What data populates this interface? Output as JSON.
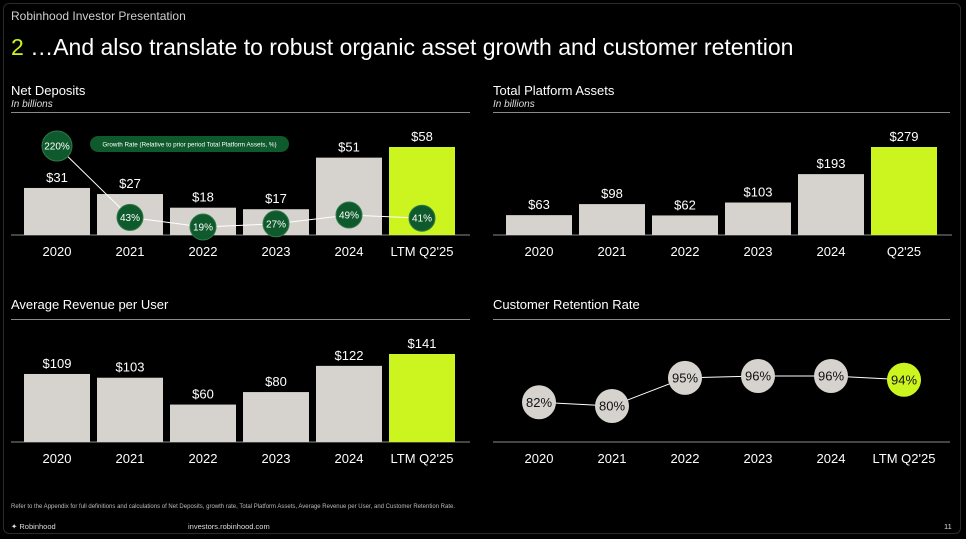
{
  "header": {
    "top_label": "Robinhood Investor Presentation",
    "title_number": "2",
    "title_text": "…And also translate to robust organic asset growth and customer retention"
  },
  "colors": {
    "bar": "#d6d3cf",
    "highlight": "#ccf520",
    "bubble": "#0f5a2c",
    "background": "#000000"
  },
  "panels": {
    "net_deposits": {
      "title": "Net Deposits",
      "subtitle": "In billions",
      "legend": "Growth Rate (Relative to prior period Total Platform Assets, %)"
    },
    "platform_assets": {
      "title": "Total Platform Assets",
      "subtitle": "In billions"
    },
    "arpu": {
      "title": "Average Revenue per User"
    },
    "retention": {
      "title": "Customer Retention Rate"
    }
  },
  "chart_data": [
    {
      "id": "net_deposits",
      "type": "bar",
      "title": "Net Deposits",
      "subtitle": "In billions",
      "categories": [
        "2020",
        "2021",
        "2022",
        "2023",
        "2024",
        "LTM Q2'25"
      ],
      "values": [
        31,
        27,
        18,
        17,
        51,
        58
      ],
      "labels": [
        "$31",
        "$27",
        "$18",
        "$17",
        "$51",
        "$58"
      ],
      "ylim": [
        0,
        58
      ],
      "highlight_index": 5,
      "overlay": {
        "type": "line",
        "name": "Growth Rate (Relative to prior period Total Platform Assets, %)",
        "values": [
          220,
          43,
          19,
          27,
          49,
          41
        ],
        "labels": [
          "220%",
          "43%",
          "19%",
          "27%",
          "49%",
          "41%"
        ]
      }
    },
    {
      "id": "platform_assets",
      "type": "bar",
      "title": "Total Platform Assets",
      "subtitle": "In billions",
      "categories": [
        "2020",
        "2021",
        "2022",
        "2023",
        "2024",
        "Q2'25"
      ],
      "values": [
        63,
        98,
        62,
        103,
        193,
        279
      ],
      "labels": [
        "$63",
        "$98",
        "$62",
        "$103",
        "$193",
        "$279"
      ],
      "ylim": [
        0,
        279
      ],
      "highlight_index": 5
    },
    {
      "id": "arpu",
      "type": "bar",
      "title": "Average Revenue per User",
      "categories": [
        "2020",
        "2021",
        "2022",
        "2023",
        "2024",
        "LTM Q2'25"
      ],
      "values": [
        109,
        103,
        60,
        80,
        122,
        141
      ],
      "labels": [
        "$109",
        "$103",
        "$60",
        "$80",
        "$122",
        "$141"
      ],
      "ylim": [
        0,
        141
      ],
      "highlight_index": 5
    },
    {
      "id": "retention",
      "type": "line",
      "title": "Customer Retention Rate",
      "categories": [
        "2020",
        "2021",
        "2022",
        "2023",
        "2024",
        "LTM Q2'25"
      ],
      "values": [
        82,
        80,
        95,
        96,
        96,
        94
      ],
      "labels": [
        "82%",
        "80%",
        "95%",
        "96%",
        "96%",
        "94%"
      ],
      "ylim": [
        75,
        100
      ],
      "highlight_index": 5
    }
  ],
  "footer": {
    "footnote": "Refer to the Appendix for full definitions and calculations of Net Deposits, growth rate, Total Platform Assets, Average Revenue per User, and Customer Retention Rate.",
    "logo": "Robinhood",
    "url": "investors.robinhood.com",
    "page": "11"
  }
}
